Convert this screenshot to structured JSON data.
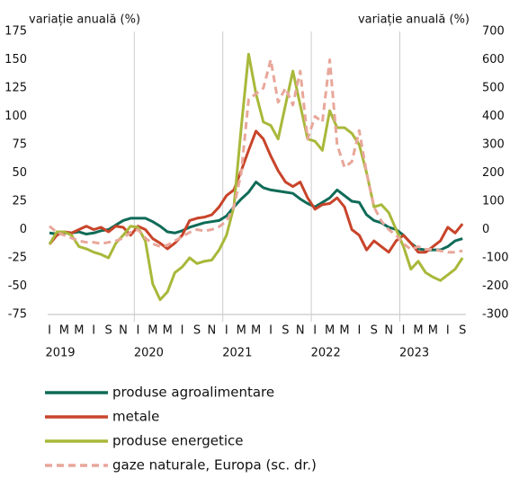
{
  "chart_data": {
    "type": "line",
    "y_label": "variație anuală (%)",
    "y2_label": "variație anuală (%)",
    "categories": [
      "I",
      null,
      "M",
      null,
      "M",
      null,
      "I",
      null,
      "S",
      null,
      "N",
      null,
      "I",
      null,
      "M",
      null,
      "M",
      null,
      "I",
      null,
      "S",
      null,
      "N",
      null,
      "I",
      null,
      "M",
      null,
      "M",
      null,
      "I",
      null,
      "S",
      null,
      "N",
      null,
      "I",
      null,
      "M",
      null,
      "M",
      null,
      "I",
      null,
      "S",
      null,
      "N",
      null,
      "I",
      null,
      "M",
      null,
      "M",
      null,
      "I",
      null,
      "S"
    ],
    "years": [
      "2019",
      "2020",
      "2021",
      "2022",
      "2023"
    ],
    "ylim": [
      -75,
      175
    ],
    "yticks": [
      -75,
      -50,
      -25,
      0,
      25,
      50,
      75,
      100,
      125,
      150,
      175
    ],
    "y2lim": [
      -300,
      700
    ],
    "y2ticks": [
      -300,
      -200,
      -100,
      0,
      100,
      200,
      300,
      400,
      500,
      600,
      700
    ],
    "legend": "bottom",
    "series": [
      {
        "name": "produse agroalimentare",
        "color": "#0f6b57",
        "values": [
          -3,
          -4,
          -3,
          -3,
          -2,
          -4,
          -3,
          -1,
          0,
          4,
          8,
          10,
          10,
          10,
          7,
          3,
          -2,
          -3,
          -1,
          2,
          4,
          6,
          7,
          8,
          12,
          20,
          27,
          33,
          42,
          37,
          35,
          34,
          33,
          32,
          27,
          23,
          20,
          24,
          28,
          35,
          30,
          25,
          24,
          13,
          8,
          6,
          2,
          0,
          -5,
          -12,
          -17,
          -18,
          -18,
          -18,
          -15,
          -10,
          -8
        ]
      },
      {
        "name": "metale",
        "color": "#c8442a",
        "values": [
          -13,
          -5,
          -2,
          -3,
          0,
          3,
          0,
          2,
          -2,
          3,
          2,
          -5,
          3,
          0,
          -8,
          -12,
          -17,
          -12,
          -5,
          8,
          10,
          11,
          13,
          20,
          30,
          35,
          52,
          70,
          87,
          80,
          65,
          52,
          42,
          38,
          42,
          28,
          18,
          22,
          23,
          28,
          20,
          0,
          -5,
          -18,
          -10,
          -15,
          -20,
          -10,
          -5,
          -12,
          -20,
          -20,
          -15,
          -10,
          2,
          -3,
          5
        ]
      },
      {
        "name": "produse energetice",
        "color": "#a9b83a",
        "values": [
          -13,
          -2,
          -2,
          -5,
          -15,
          -17,
          -20,
          -22,
          -25,
          -12,
          -5,
          3,
          2,
          -10,
          -48,
          -62,
          -55,
          -38,
          -33,
          -25,
          -30,
          -28,
          -27,
          -18,
          -5,
          20,
          90,
          155,
          120,
          95,
          92,
          80,
          110,
          140,
          110,
          80,
          78,
          70,
          105,
          90,
          90,
          85,
          75,
          50,
          20,
          22,
          15,
          0,
          -15,
          -35,
          -28,
          -38,
          -42,
          -45,
          -40,
          -35,
          -25
        ]
      },
      {
        "name": "gaze naturale, Europa (sc. dr.)",
        "color": "#e8a79a",
        "axis": "y2",
        "line_style": "dashed",
        "values": [
          12,
          -10,
          -20,
          -30,
          -40,
          -45,
          -45,
          -50,
          -45,
          -40,
          -30,
          -10,
          0,
          -30,
          -50,
          -60,
          -55,
          -40,
          -25,
          -10,
          0,
          -5,
          0,
          10,
          30,
          80,
          200,
          460,
          480,
          500,
          600,
          450,
          500,
          440,
          560,
          320,
          400,
          380,
          600,
          300,
          220,
          240,
          350,
          200,
          80,
          30,
          0,
          -20,
          -50,
          -70,
          -60,
          -70,
          -70,
          -75,
          -80,
          -80,
          -75
        ]
      }
    ]
  }
}
